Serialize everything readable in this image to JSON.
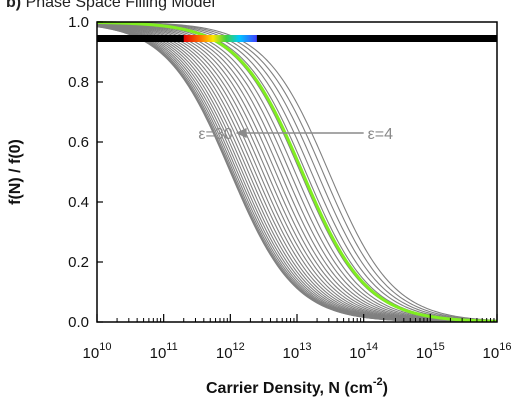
{
  "panel": {
    "letter": "b)",
    "title": "Phase Space Filling Model"
  },
  "chart_data": {
    "type": "line",
    "title": "Phase Space Filling Model",
    "xlabel_main": "Carrier Density, N (cm",
    "xlabel_sup": "-2",
    "xlabel_close": ")",
    "ylabel": "f(N) / f(0)",
    "xscale": "log",
    "xlim": [
      10000000000.0,
      1e+16
    ],
    "ylim": [
      0,
      1.0
    ],
    "yticks": [
      "0.0",
      "0.2",
      "0.4",
      "0.6",
      "0.8",
      "1.0"
    ],
    "xtick_base": "10",
    "xtick_exponents": [
      "10",
      "11",
      "12",
      "13",
      "14",
      "15",
      "16"
    ],
    "grid": false,
    "curve_family": {
      "count": 27,
      "epsilon_range": [
        4,
        30
      ],
      "half_point_N_range": [
        1000000000000.0,
        30000000000000.0
      ],
      "color": "#808080",
      "highlight_color": "#80ee20",
      "highlight_half_point_N": 12000000000000.0
    },
    "reference_line": {
      "y": 0.945,
      "color": "#000000"
    },
    "rainbow_band": {
      "x_range": [
        200000000000.0,
        2500000000000.0
      ],
      "y": 0.945
    },
    "annotations": {
      "left": "ε=30",
      "right": "ε=4",
      "arrow_from_N": 100000000000000.0,
      "arrow_to_N": 1200000000000.0,
      "arrow_y": 0.63
    }
  }
}
